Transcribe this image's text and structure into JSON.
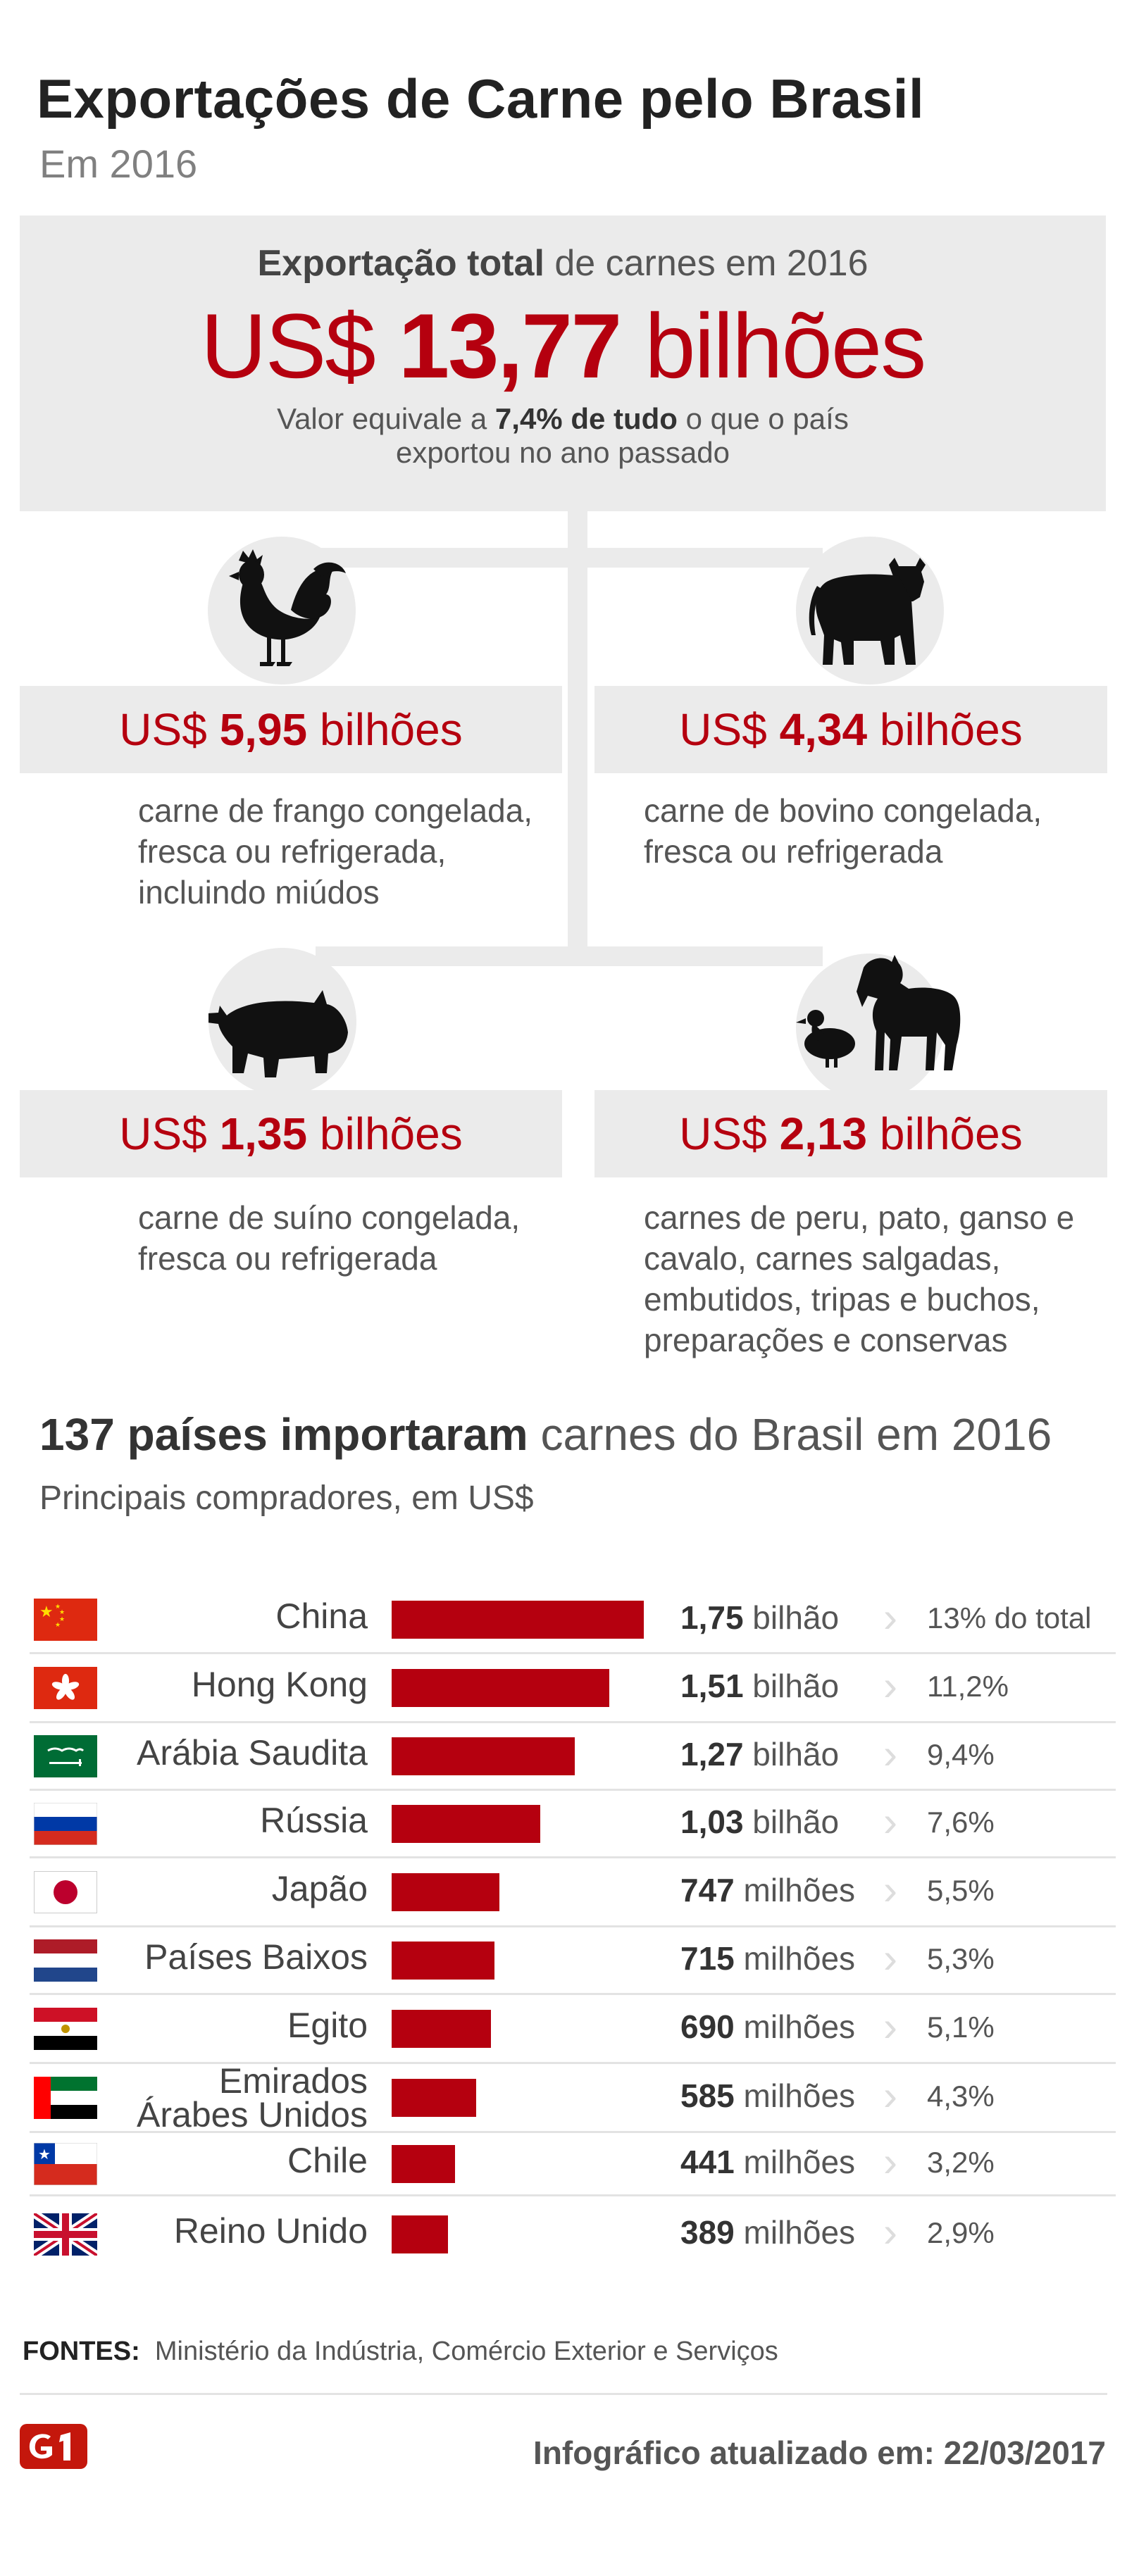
{
  "header": {
    "title": "Exportações de Carne pelo Brasil",
    "subtitle": "Em 2016"
  },
  "total": {
    "line_bold": "Exportação total",
    "line_rest": " de carnes em 2016",
    "amount_prefix": "US$ ",
    "amount_bold": "13,77",
    "amount_suffix": " bilhões",
    "note_pre": "Valor equivale a ",
    "note_bold": "7,4% de tudo",
    "note_post": " o que o país exportou no ano passado"
  },
  "categories": [
    {
      "icon": "chicken-icon",
      "prefix": "US$ ",
      "amount": "5,95",
      "suffix": " bilhões",
      "desc": "carne de frango congelada, fresca ou refrigerada, incluindo miúdos"
    },
    {
      "icon": "cow-icon",
      "prefix": "US$ ",
      "amount": "4,34",
      "suffix": " bilhões",
      "desc": "carne de bovino congelada, fresca ou refrigerada"
    },
    {
      "icon": "pig-icon",
      "prefix": "US$ ",
      "amount": "1,35",
      "suffix": " bilhões",
      "desc": "carne de suíno congelada, fresca ou refrigerada"
    },
    {
      "icon": "horse-duck-icon",
      "prefix": "US$ ",
      "amount": "2,13",
      "suffix": " bilhões",
      "desc": "carnes de peru, pato, ganso e cavalo, carnes salgadas, embutidos, tripas e buchos, preparações e conservas"
    }
  ],
  "importers": {
    "title_bold": "137 países importaram",
    "title_rest": " carnes do Brasil em 2016",
    "subtitle": "Principais compradores, em US$"
  },
  "chart_data": {
    "type": "bar",
    "orientation": "horizontal",
    "unit": "US$",
    "categories": [
      "China",
      "Hong Kong",
      "Arábia Saudita",
      "Rússia",
      "Japão",
      "Países Baixos",
      "Egito",
      "Emirados Árabes Unidos",
      "Chile",
      "Reino Unido"
    ],
    "values": [
      1750,
      1510,
      1270,
      1030,
      747,
      715,
      690,
      585,
      441,
      389
    ],
    "value_unit": "milhões",
    "value_labels": [
      {
        "num": "1,75",
        "unit": " bilhão"
      },
      {
        "num": "1,51",
        "unit": " bilhão"
      },
      {
        "num": "1,27",
        "unit": " bilhão"
      },
      {
        "num": "1,03",
        "unit": " bilhão"
      },
      {
        "num": "747",
        "unit": " milhões"
      },
      {
        "num": "715",
        "unit": " milhões"
      },
      {
        "num": "690",
        "unit": " milhões"
      },
      {
        "num": "585",
        "unit": " milhões"
      },
      {
        "num": "441",
        "unit": " milhões"
      },
      {
        "num": "389",
        "unit": " milhões"
      }
    ],
    "shares": [
      "13% do total",
      "11,2%",
      "9,4%",
      "7,6%",
      "5,5%",
      "5,3%",
      "5,1%",
      "4,3%",
      "3,2%",
      "2,9%"
    ],
    "flags": [
      "china-flag",
      "hong-kong-flag",
      "saudi-arabia-flag",
      "russia-flag",
      "japan-flag",
      "netherlands-flag",
      "egypt-flag",
      "uae-flag",
      "chile-flag",
      "uk-flag"
    ],
    "bar_color": "#b5000f",
    "xlim": [
      0,
      1750
    ]
  },
  "footer": {
    "sources_label": "FONTES:",
    "sources_text": "Ministério da Indústria, Comércio Exterior e Serviços",
    "logo_text": "G1",
    "updated": "Infográfico atualizado em: 22/03/2017"
  },
  "colors": {
    "accent": "#b5000f",
    "panel": "#ebebeb",
    "text": "#555555"
  }
}
